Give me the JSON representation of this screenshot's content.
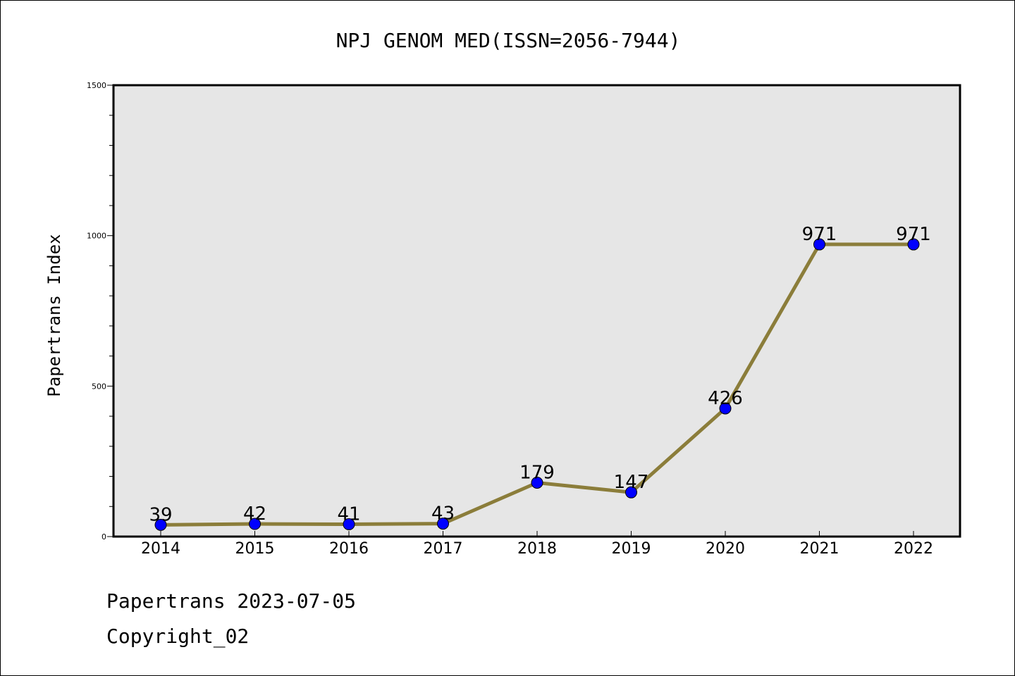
{
  "chart_data": {
    "type": "line",
    "title": "NPJ GENOM MED(ISSN=2056-7944)",
    "ylabel": "Papertrans Index",
    "xlabel": "",
    "categories": [
      "2014",
      "2015",
      "2016",
      "2017",
      "2018",
      "2019",
      "2020",
      "2021",
      "2022"
    ],
    "series": [
      {
        "values": [
          39,
          42,
          41,
          43,
          179,
          147,
          426,
          971,
          971
        ]
      }
    ],
    "data_labels": [
      "39",
      "42",
      "41",
      "43",
      "179",
      "147",
      "426",
      "971",
      "971"
    ],
    "ylim": [
      0,
      1500
    ],
    "yticks": [
      "0",
      "500",
      "1000",
      "1500"
    ],
    "grid": false,
    "legend": "none",
    "colors": {
      "line": "#8b7d3a",
      "marker": "#0000ff",
      "plot_background": "#e6e6e6"
    }
  },
  "footer": {
    "date_line": "Papertrans 2023-07-05",
    "copyright_line": "Copyright_02"
  }
}
